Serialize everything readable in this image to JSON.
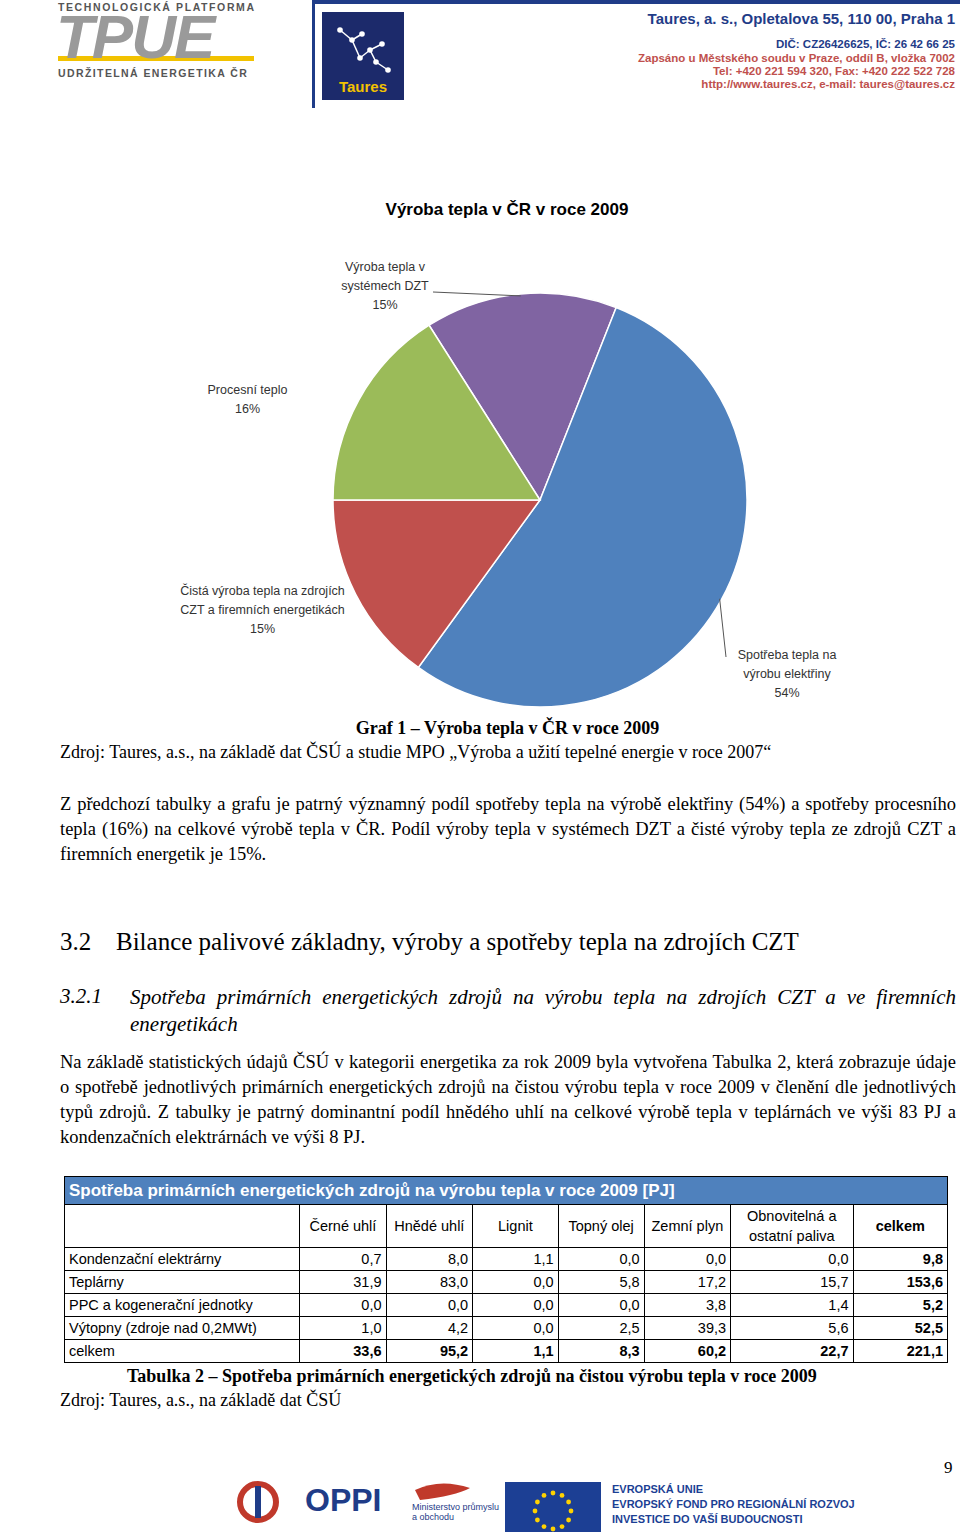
{
  "header": {
    "tpue_top": "TECHNOLOGICKÁ PLATFORMA",
    "tpue_logo": "TPUE",
    "tpue_bottom": "UDRŽITELNÁ ENERGETIKA ČR",
    "taures_logo": "Taures",
    "company": [
      "Taures, a. s., Opletalova 55, 110 00, Praha 1",
      "DIČ: CZ26426625, IČ: 26 42 66 25",
      "Zapsáno u Městského soudu v Praze, oddíl B, vložka 7002",
      "Tel: +420 221 594 320, Fax: +420 222 522 728",
      "http://www.taures.cz, e-mail: taures@taures.cz"
    ]
  },
  "chart_data": {
    "type": "pie",
    "title": "Výroba tepla v ČR v roce 2009",
    "categories": [
      "Výroba tepla v systémech DZT",
      "Spotřeba tepla na výrobu elektřiny",
      "Čistá výroba tepla na zdrojích CZT a firemních energetikách",
      "Procesní teplo"
    ],
    "values": [
      15,
      54,
      15,
      16
    ],
    "value_labels": [
      "15%",
      "54%",
      "15%",
      "16%"
    ],
    "colors": [
      "#8064a2",
      "#4f81bd",
      "#c0504d",
      "#9bbb59"
    ],
    "data_labels": true
  },
  "figure_caption": "Graf 1 – Výroba tepla v ČR v roce 2009",
  "figure_source": "Zdroj: Taures, a.s., na základě dat ČSÚ a studie MPO „Výroba a užití tepelné energie v roce 2007“",
  "paragraph_1": "Z předchozí tabulky a grafu je patrný významný podíl spotřeby tepla na výrobě elektřiny (54%) a spotřeby procesního tepla (16%) na celkové výrobě tepla v ČR. Podíl výroby tepla v systémech DZT a čisté výroby tepla ze zdrojů CZT a firemních energetik je 15%.",
  "section": {
    "number": "3.2",
    "title": "Bilance palivové základny, výroby a spotřeby tepla na zdrojích CZT"
  },
  "subsection": {
    "number": "3.2.1",
    "title": "Spotřeba primárních energetických zdrojů na výrobu tepla na zdrojích CZT a ve firemních energetikách"
  },
  "paragraph_2": "Na základě statistických údajů ČSÚ v kategorii energetika za rok 2009 byla vytvořena Tabulka 2, která zobrazuje údaje o spotřebě jednotlivých primárních energetických zdrojů na čistou výrobu tepla v roce 2009 v členění dle jednotlivých typů zdrojů. Z tabulky je patrný dominantní podíl hnědého uhlí na celkové výrobě tepla v teplárnách ve výši 83 PJ a kondenzačních elektrárnách ve výši 8 PJ.",
  "table": {
    "title": "Spotřeba primárních energetických zdrojů na výrobu tepla v roce 2009 [PJ]",
    "columns": [
      "Černé uhlí",
      "Hnědé uhlí",
      "Lignit",
      "Topný olej",
      "Zemní plyn",
      "Obnovitelná a ostatní paliva",
      "celkem"
    ],
    "rows": [
      [
        "Kondenzační elektrárny",
        "0,7",
        "8,0",
        "1,1",
        "0,0",
        "0,0",
        "0,0",
        "9,8"
      ],
      [
        "Teplárny",
        "31,9",
        "83,0",
        "0,0",
        "5,8",
        "17,2",
        "15,7",
        "153,6"
      ],
      [
        "PPC a kogenerační jednotky",
        "0,0",
        "0,0",
        "0,0",
        "0,0",
        "3,8",
        "1,4",
        "5,2"
      ],
      [
        "Výtopny (zdroje nad 0,2MWt)",
        "1,0",
        "4,2",
        "0,0",
        "2,5",
        "39,3",
        "5,6",
        "52,5"
      ],
      [
        "celkem",
        "33,6",
        "95,2",
        "1,1",
        "8,3",
        "60,2",
        "22,7",
        "221,1"
      ]
    ],
    "caption": "Tabulka 2 – Spotřeba primárních energetických zdrojů na čistou výrobu tepla v roce 2009",
    "source": "Zdroj: Taures, a.s., na základě dat ČSÚ"
  },
  "footer": {
    "oppi": "OPPI",
    "ministry": "Ministerstvo průmyslu a obchodu",
    "eu": [
      "EVROPSKÁ UNIE",
      "EVROPSKÝ FOND PRO REGIONÁLNÍ ROZVOJ",
      "INVESTICE DO VAŠÍ BUDOUCNOSTI"
    ],
    "page_number": "9"
  }
}
